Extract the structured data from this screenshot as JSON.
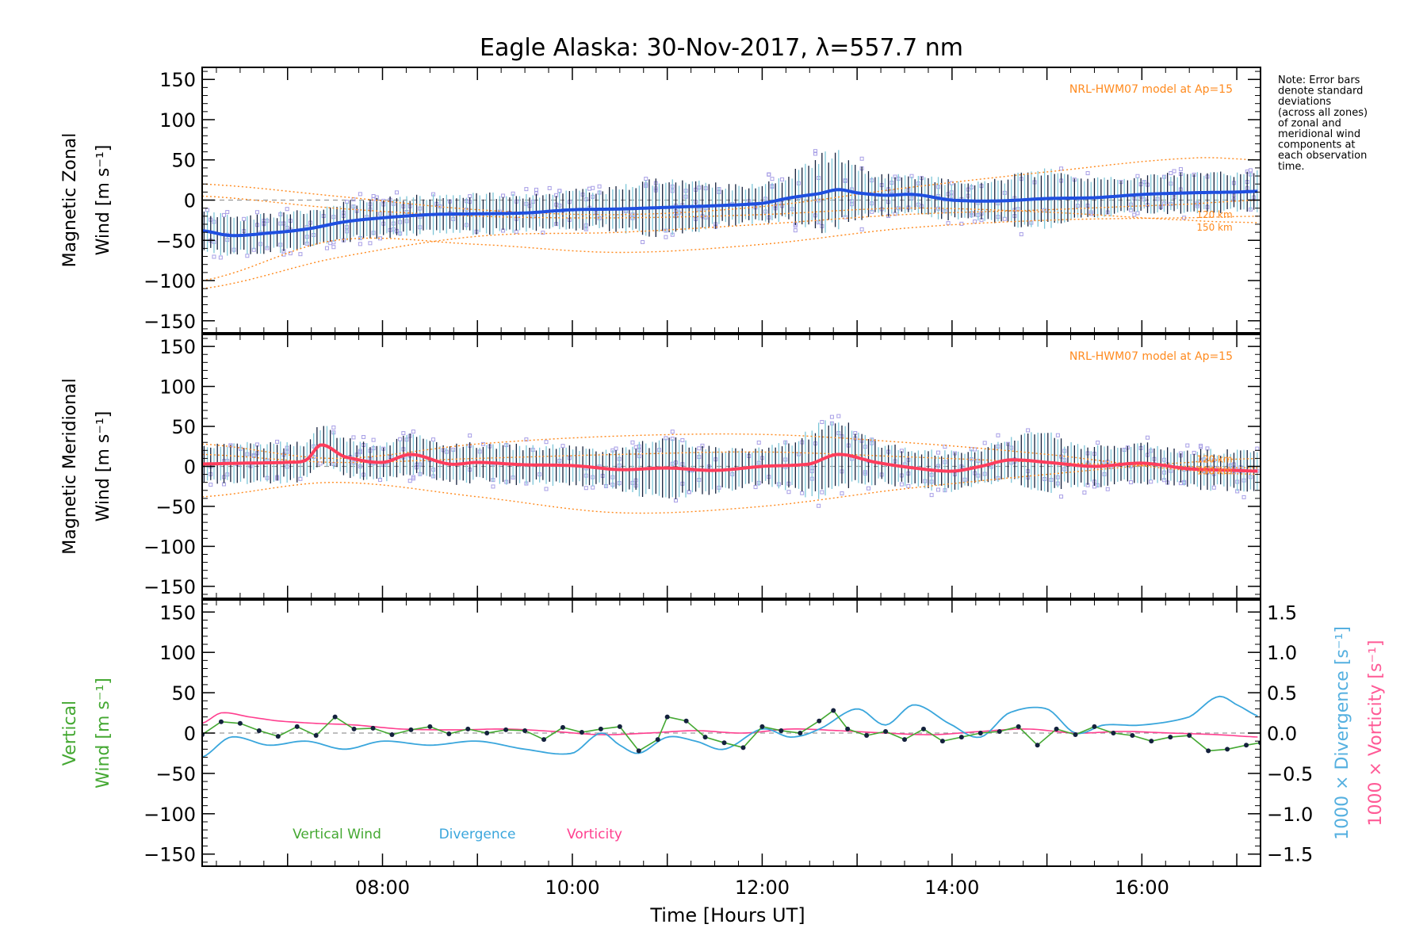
{
  "chart_data": {
    "type": "line",
    "title": "Eagle Alaska: 30-Nov-2017, λ=557.7 nm",
    "xlabel": "Time [Hours UT]",
    "xlim": [
      6.1,
      17.25
    ],
    "x_ticks": [
      8,
      10,
      12,
      14,
      16
    ],
    "x_tick_labels": [
      "08:00",
      "10:00",
      "12:00",
      "14:00",
      "16:00"
    ],
    "note": [
      "Note: Error bars",
      "denote standard",
      "deviations",
      "(across all zones)",
      "of zonal and",
      "meridional wind",
      "components at",
      "each observation",
      "time."
    ],
    "colors": {
      "zonal": "#1f4fe0",
      "meridional": "#ff3d5c",
      "model": "#ff8a1e",
      "scatter": "#a79ee6",
      "errorbar_dark": "#14213d",
      "errorbar_light": "#7ec6d8",
      "vertical": "#44a832",
      "divergence": "#3aa6dc",
      "vorticity": "#ff3f8f",
      "ytitle_vertical": "#44a832",
      "ytitle_div": "#55b0e0",
      "ytitle_vort": "#ff5a96"
    },
    "panels": [
      {
        "id": "zonal",
        "ylabel": [
          "Magnetic Zonal",
          "Wind [m s⁻¹]"
        ],
        "ylim": [
          -165,
          165
        ],
        "y_ticks": [
          -150,
          -100,
          -50,
          0,
          50,
          100,
          150
        ],
        "y_tick_labels": [
          "−150",
          "−100",
          "−50",
          "0",
          "50",
          "100",
          "150"
        ],
        "model_label": "NRL-HWM07 model at Ap=15",
        "model_alt_labels": [
          "120 km",
          "150 km"
        ],
        "series": [
          {
            "name": "Zonal wind",
            "x": [
              6.1,
              6.4,
              6.8,
              7.2,
              7.6,
              8.0,
              8.5,
              9.0,
              9.5,
              10.0,
              10.5,
              11.0,
              11.5,
              12.0,
              12.3,
              12.6,
              12.8,
              13.0,
              13.3,
              13.6,
              14.0,
              14.5,
              15.0,
              15.5,
              16.0,
              16.5,
              17.0,
              17.25
            ],
            "values": [
              -38,
              -44,
              -41,
              -36,
              -27,
              -22,
              -18,
              -17,
              -16,
              -12,
              -11,
              -9,
              -7,
              -4,
              3,
              8,
              13,
              9,
              6,
              7,
              0,
              -1,
              2,
              3,
              7,
              9,
              10,
              11
            ]
          }
        ],
        "model_curves": [
          {
            "x": [
              6.1,
              7.5,
              9.0,
              10.5,
              12.0,
              13.5,
              15.0,
              16.5,
              17.25
            ],
            "values": [
              20,
              5,
              -12,
              -18,
              -8,
              15,
              35,
              52,
              50
            ]
          },
          {
            "x": [
              6.1,
              7.5,
              9.0,
              10.5,
              12.0,
              13.5,
              15.0,
              16.5,
              17.25
            ],
            "values": [
              -110,
              -72,
              -45,
              -40,
              -30,
              -18,
              -12,
              -5,
              0
            ]
          },
          {
            "x": [
              6.1,
              7.5,
              9.0,
              10.5,
              12.0,
              13.5,
              15.0,
              16.5,
              17.25
            ],
            "values": [
              -100,
              -50,
              -55,
              -65,
              -55,
              -35,
              -25,
              -22,
              -20
            ]
          },
          {
            "x": [
              6.1,
              7.5,
              9.0,
              10.5,
              12.0,
              13.5,
              15.0,
              16.5,
              17.25
            ],
            "values": [
              5,
              -10,
              -20,
              -22,
              -18,
              -10,
              -15,
              -25,
              -28
            ]
          }
        ]
      },
      {
        "id": "meridional",
        "ylabel": [
          "Magnetic Meridional",
          "Wind [m s⁻¹]"
        ],
        "ylim": [
          -165,
          165
        ],
        "y_ticks": [
          -150,
          -100,
          -50,
          0,
          50,
          100,
          150
        ],
        "y_tick_labels": [
          "−150",
          "−100",
          "−50",
          "0",
          "50",
          "100",
          "150"
        ],
        "model_label": "NRL-HWM07 model at Ap=15",
        "model_alt_labels": [
          "120 km",
          "150 km"
        ],
        "series": [
          {
            "name": "Meridional wind",
            "x": [
              6.1,
              6.5,
              7.0,
              7.2,
              7.35,
              7.6,
              8.0,
              8.3,
              8.7,
              9.0,
              9.5,
              10.0,
              10.5,
              11.0,
              11.5,
              12.0,
              12.5,
              12.8,
              13.2,
              13.6,
              14.0,
              14.3,
              14.6,
              15.0,
              15.5,
              16.0,
              16.5,
              17.0,
              17.25
            ],
            "values": [
              3,
              4,
              5,
              8,
              27,
              12,
              5,
              15,
              3,
              5,
              2,
              1,
              -4,
              -2,
              -5,
              0,
              3,
              15,
              5,
              -2,
              -6,
              0,
              8,
              5,
              0,
              4,
              -3,
              -5,
              -6
            ]
          }
        ],
        "model_curves": [
          {
            "x": [
              6.1,
              7.5,
              9.0,
              10.5,
              12.0,
              13.5,
              15.0,
              16.5,
              17.25
            ],
            "values": [
              -38,
              -20,
              -38,
              -58,
              -50,
              -28,
              -10,
              5,
              10
            ]
          },
          {
            "x": [
              6.1,
              7.5,
              9.0,
              10.5,
              12.0,
              13.5,
              15.0,
              16.5,
              17.25
            ],
            "values": [
              28,
              10,
              28,
              38,
              40,
              30,
              15,
              -5,
              -10
            ]
          },
          {
            "x": [
              6.1,
              7.5,
              9.0,
              10.5,
              12.0,
              13.5,
              15.0,
              16.5,
              17.25
            ],
            "values": [
              15,
              5,
              10,
              15,
              18,
              12,
              5,
              0,
              -2
            ]
          }
        ]
      },
      {
        "id": "vertical",
        "ylabel": [
          "Vertical",
          "Wind [m s⁻¹]"
        ],
        "ylim": [
          -165,
          165
        ],
        "y_ticks": [
          -150,
          -100,
          -50,
          0,
          50,
          100,
          150
        ],
        "y_tick_labels": [
          "−150",
          "−100",
          "−50",
          "0",
          "50",
          "100",
          "150"
        ],
        "y2label_div": "1000 × Divergence [s⁻¹]",
        "y2label_vort": "1000 × Vorticity [s⁻¹]",
        "y2lim": [
          -1.65,
          1.65
        ],
        "y2_ticks": [
          -1.5,
          -1.0,
          -0.5,
          0.0,
          0.5,
          1.0,
          1.5
        ],
        "y2_tick_labels": [
          "−1.5",
          "−1.0",
          "−0.5",
          "0.0",
          "0.5",
          "1.0",
          "1.5"
        ],
        "legend": [
          "Vertical Wind",
          "Divergence",
          "Vorticity"
        ],
        "series": [
          {
            "name": "Vertical Wind",
            "axis": "left",
            "x": [
              6.1,
              6.3,
              6.5,
              6.7,
              6.9,
              7.1,
              7.3,
              7.5,
              7.7,
              7.9,
              8.1,
              8.3,
              8.5,
              8.7,
              8.9,
              9.1,
              9.3,
              9.5,
              9.7,
              9.9,
              10.1,
              10.3,
              10.5,
              10.7,
              10.9,
              11.0,
              11.2,
              11.4,
              11.6,
              11.8,
              12.0,
              12.2,
              12.4,
              12.6,
              12.75,
              12.9,
              13.1,
              13.3,
              13.5,
              13.7,
              13.9,
              14.1,
              14.3,
              14.5,
              14.7,
              14.9,
              15.1,
              15.3,
              15.5,
              15.7,
              15.9,
              16.1,
              16.3,
              16.5,
              16.7,
              16.9,
              17.1,
              17.25
            ],
            "values": [
              -2,
              14,
              12,
              3,
              -4,
              8,
              -3,
              20,
              5,
              6,
              -2,
              4,
              8,
              -1,
              5,
              0,
              4,
              3,
              -8,
              7,
              1,
              5,
              8,
              -22,
              -8,
              20,
              15,
              -5,
              -12,
              -18,
              8,
              3,
              0,
              15,
              28,
              5,
              -3,
              2,
              -8,
              5,
              -10,
              -5,
              0,
              2,
              8,
              -15,
              5,
              -2,
              8,
              0,
              -3,
              -10,
              -5,
              -3,
              -22,
              -20,
              -15,
              -12
            ]
          },
          {
            "name": "Divergence",
            "axis": "right",
            "x": [
              6.1,
              6.4,
              6.8,
              7.2,
              7.6,
              8.0,
              8.5,
              9.0,
              9.5,
              10.0,
              10.3,
              10.5,
              10.7,
              11.0,
              11.3,
              11.6,
              12.0,
              12.3,
              12.6,
              13.0,
              13.3,
              13.6,
              14.0,
              14.3,
              14.6,
              15.0,
              15.3,
              15.6,
              16.0,
              16.5,
              16.8,
              17.0,
              17.25
            ],
            "values": [
              -0.3,
              -0.05,
              -0.15,
              -0.1,
              -0.2,
              -0.1,
              -0.15,
              -0.1,
              -0.2,
              -0.25,
              0.0,
              -0.15,
              -0.25,
              -0.05,
              -0.1,
              -0.2,
              0.05,
              -0.05,
              0.05,
              0.3,
              0.1,
              0.35,
              0.1,
              -0.05,
              0.25,
              0.3,
              0.0,
              0.1,
              0.1,
              0.2,
              0.45,
              0.35,
              0.2
            ]
          },
          {
            "name": "Vorticity",
            "axis": "right",
            "x": [
              6.1,
              6.3,
              6.6,
              6.9,
              7.3,
              7.7,
              8.2,
              8.8,
              9.3,
              9.8,
              10.3,
              10.8,
              11.3,
              11.8,
              12.3,
              12.8,
              13.3,
              13.8,
              14.3,
              14.8,
              15.3,
              15.8,
              16.3,
              16.8,
              17.25
            ],
            "values": [
              0.12,
              0.25,
              0.2,
              0.15,
              0.12,
              0.1,
              0.05,
              0.04,
              0.05,
              0.02,
              -0.02,
              0.0,
              0.03,
              0.0,
              0.05,
              0.03,
              0.0,
              -0.02,
              0.02,
              0.05,
              0.0,
              0.02,
              0.0,
              -0.02,
              -0.05
            ]
          }
        ]
      }
    ]
  }
}
